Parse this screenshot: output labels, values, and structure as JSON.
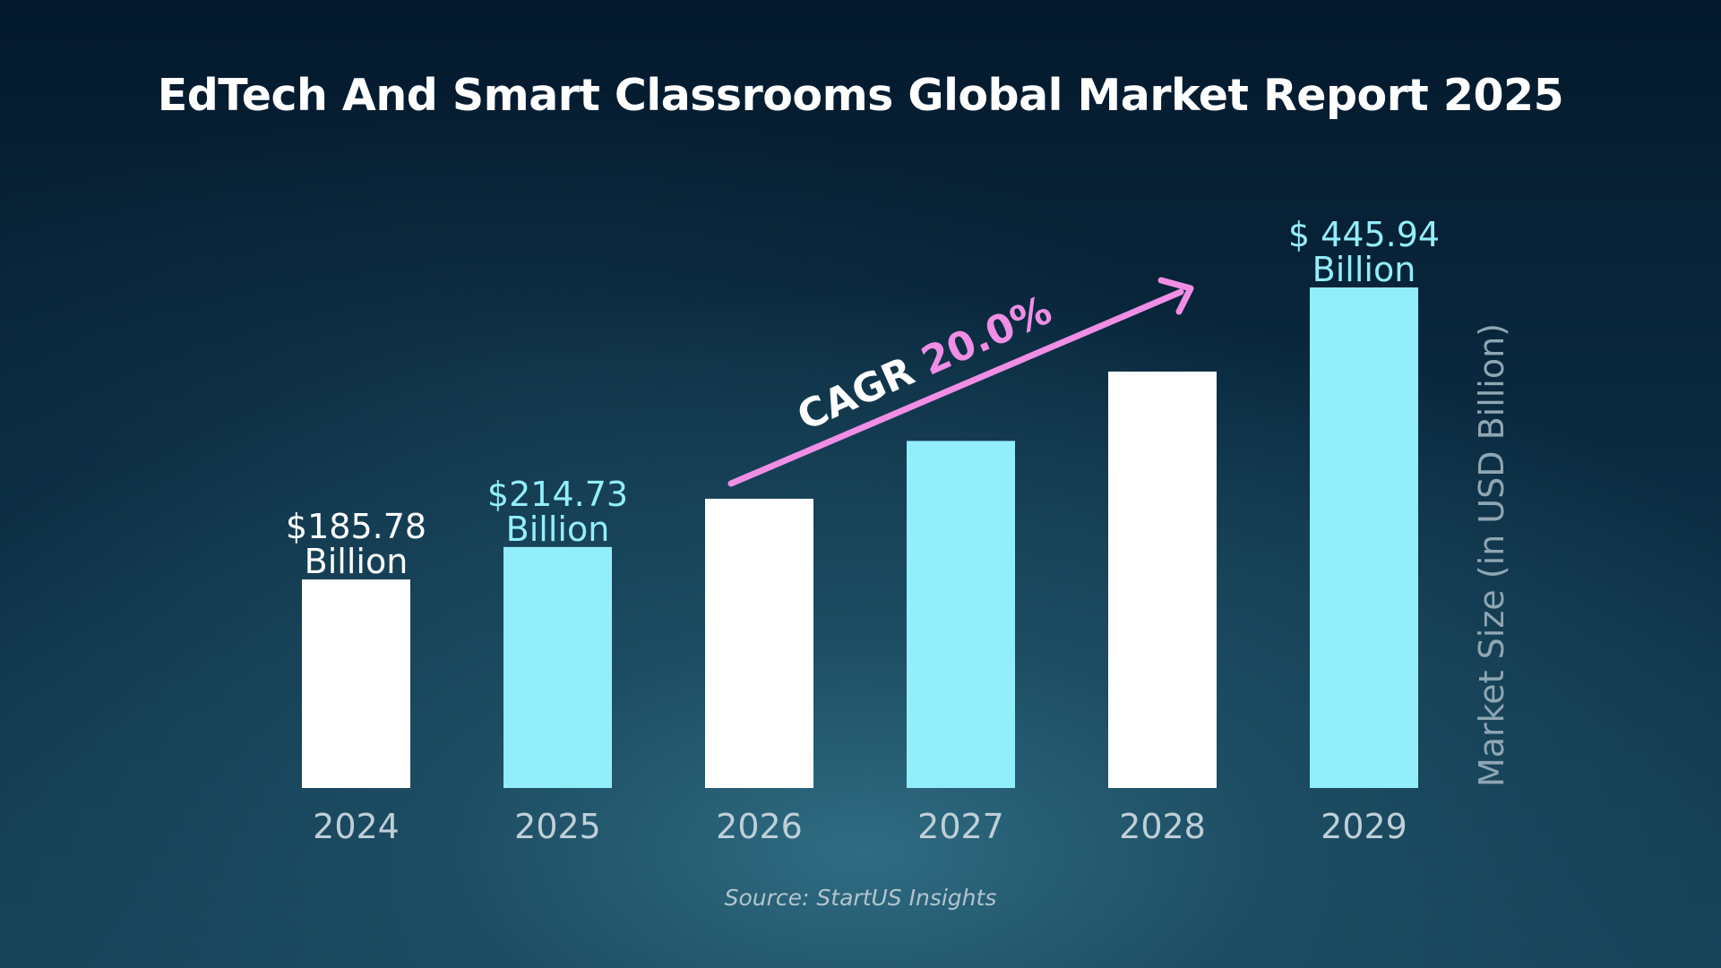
{
  "chart_data": {
    "type": "bar",
    "title": "EdTech And Smart Classrooms Global Market Report 2025",
    "ylabel": "Market Size (in USD Billion)",
    "xlabel": "",
    "categories": [
      "2024",
      "2025",
      "2026",
      "2027",
      "2028",
      "2029"
    ],
    "values": [
      185.78,
      214.73,
      257.7,
      309.2,
      371.0,
      445.94
    ],
    "ylim": [
      0,
      445.94
    ],
    "value_labels": [
      {
        "index": 0,
        "line1": "$185.78",
        "line2": "Billion"
      },
      {
        "index": 1,
        "line1": "$214.73",
        "line2": "Billion"
      },
      {
        "index": 5,
        "line1": "$ 445.94",
        "line2": "Billion"
      }
    ],
    "cagr": {
      "prefix": "CAGR ",
      "value": "20.0%"
    },
    "source": "Source: StartUS Insights",
    "grid": false,
    "legend": "none"
  },
  "colors": {
    "bar_white": "#ffffff",
    "bar_cyan": "#93eefb",
    "label_white": "#ffffff",
    "label_cyan": "#93eefb",
    "arrow": "#f08ee6",
    "background": "#0a2236"
  }
}
